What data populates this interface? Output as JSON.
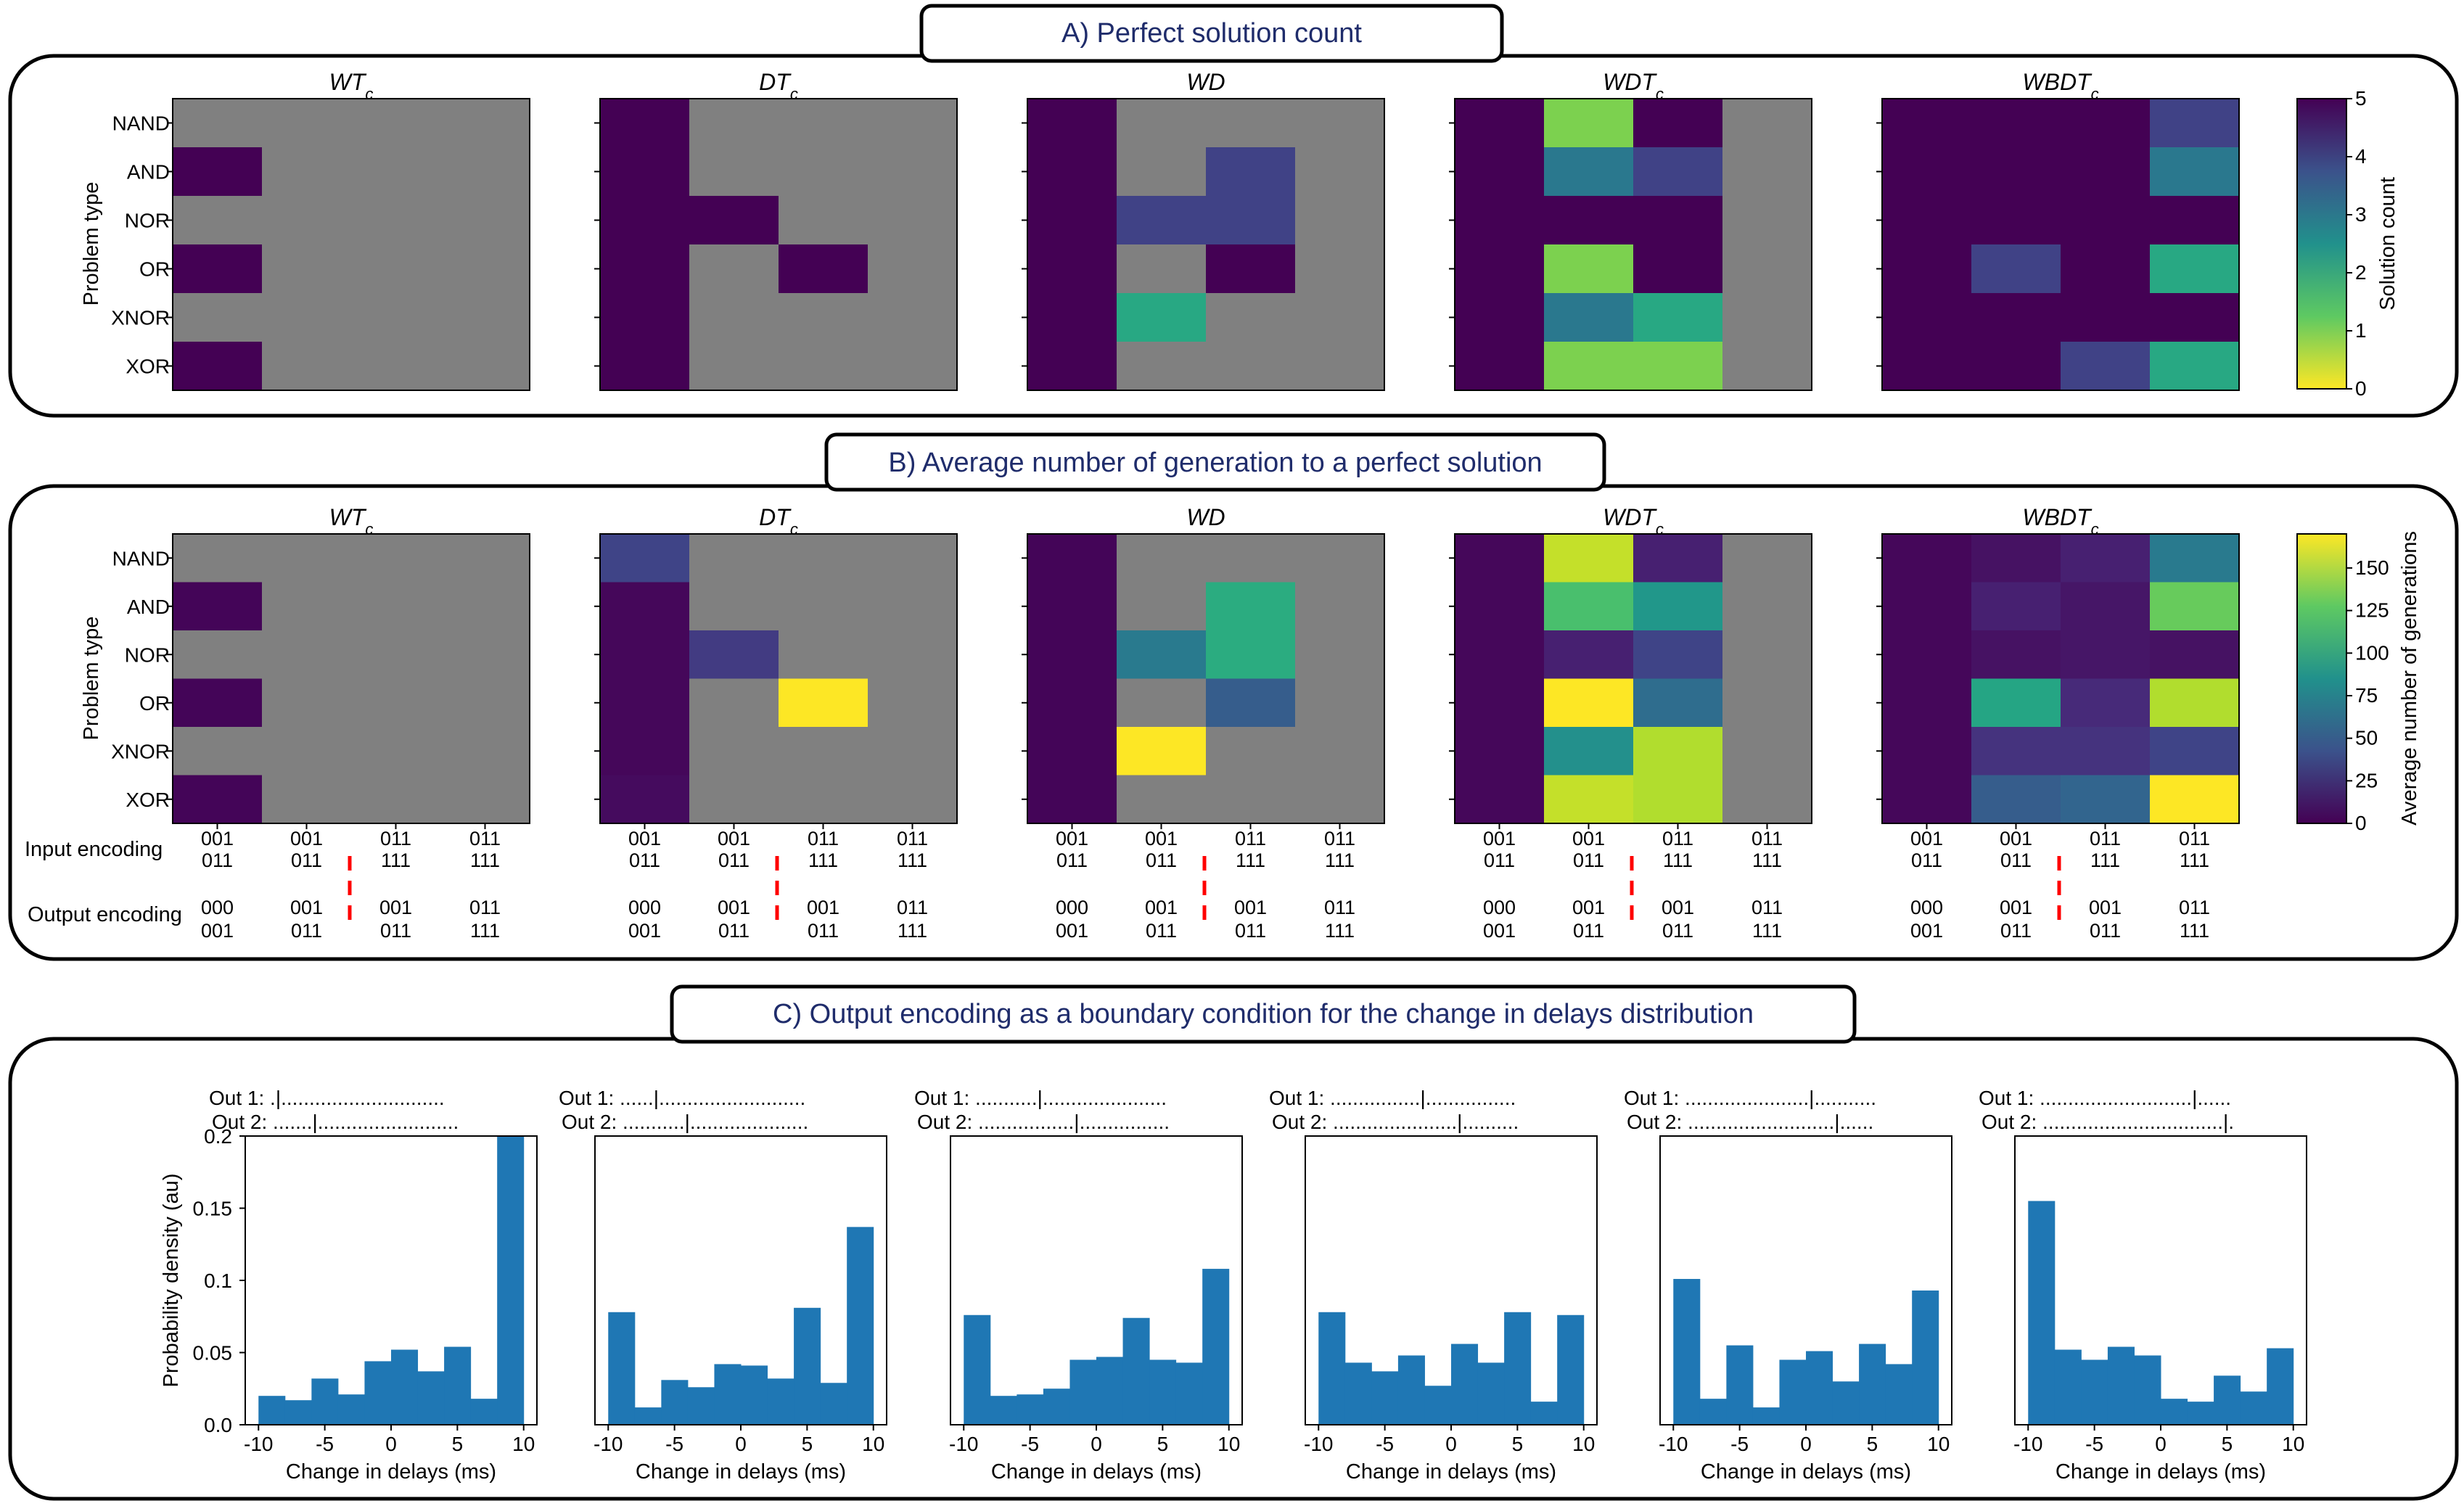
{
  "sections": {
    "a": {
      "title": "A) Perfect solution count"
    },
    "b": {
      "title": "B) Average number of generation to a perfect solution"
    },
    "c": {
      "title": "C) Output encoding as a boundary condition for the change in delays distribution"
    }
  },
  "colors": {
    "nan": "#808080",
    "bar": "#1f77b4",
    "frame": "#000000",
    "header_text": "#1f2c6b",
    "dash": "#ff0000"
  },
  "chart_data": [
    {
      "id": "A",
      "type": "heatmap",
      "ylabel": "Problem type",
      "rows": [
        "NAND",
        "AND",
        "NOR",
        "OR",
        "XNOR",
        "XOR"
      ],
      "cols": 4,
      "colormap": "viridis_r",
      "vmin": 0,
      "vmax": 5,
      "colorbar_label": "Solution count",
      "colorbar_ticks": [
        "0",
        "1",
        "2",
        "3",
        "4",
        "5"
      ],
      "panels": [
        {
          "title": "WT",
          "subscript": "c",
          "values": [
            [
              null,
              null,
              null,
              null
            ],
            [
              5,
              null,
              null,
              null
            ],
            [
              null,
              null,
              null,
              null
            ],
            [
              5,
              null,
              null,
              null
            ],
            [
              null,
              null,
              null,
              null
            ],
            [
              5,
              null,
              null,
              null
            ]
          ]
        },
        {
          "title": "DT",
          "subscript": "c",
          "values": [
            [
              5,
              null,
              null,
              null
            ],
            [
              5,
              null,
              null,
              null
            ],
            [
              5,
              5,
              null,
              null
            ],
            [
              5,
              null,
              5,
              null
            ],
            [
              5,
              null,
              null,
              null
            ],
            [
              5,
              null,
              null,
              null
            ]
          ]
        },
        {
          "title": "WD",
          "subscript": "",
          "values": [
            [
              5,
              null,
              null,
              null
            ],
            [
              5,
              null,
              4,
              null
            ],
            [
              5,
              4,
              4,
              null
            ],
            [
              5,
              null,
              5,
              null
            ],
            [
              5,
              2,
              null,
              null
            ],
            [
              5,
              null,
              null,
              null
            ]
          ]
        },
        {
          "title": "WDT",
          "subscript": "c",
          "values": [
            [
              5,
              1,
              5,
              null
            ],
            [
              5,
              3,
              4,
              null
            ],
            [
              5,
              5,
              5,
              null
            ],
            [
              5,
              1,
              5,
              null
            ],
            [
              5,
              3,
              2,
              null
            ],
            [
              5,
              1,
              1,
              null
            ]
          ]
        },
        {
          "title": "WBDT",
          "subscript": "c",
          "values": [
            [
              5,
              5,
              5,
              4
            ],
            [
              5,
              5,
              5,
              3
            ],
            [
              5,
              5,
              5,
              5
            ],
            [
              5,
              4,
              5,
              2
            ],
            [
              5,
              5,
              5,
              5
            ],
            [
              5,
              5,
              4,
              2
            ]
          ]
        }
      ]
    },
    {
      "id": "B",
      "type": "heatmap",
      "ylabel": "Problem type",
      "rows": [
        "NAND",
        "AND",
        "NOR",
        "OR",
        "XNOR",
        "XOR"
      ],
      "cols": 4,
      "colormap": "viridis",
      "vmin": 0,
      "vmax": 170,
      "colorbar_label": "Average number of generations",
      "colorbar_ticks": [
        "0",
        "25",
        "50",
        "75",
        "100",
        "125",
        "150"
      ],
      "panels": [
        {
          "title": "WT",
          "subscript": "c",
          "values": [
            [
              null,
              null,
              null,
              null
            ],
            [
              2,
              null,
              null,
              null
            ],
            [
              null,
              null,
              null,
              null
            ],
            [
              2,
              null,
              null,
              null
            ],
            [
              null,
              null,
              null,
              null
            ],
            [
              2,
              null,
              null,
              null
            ]
          ]
        },
        {
          "title": "DT",
          "subscript": "c",
          "values": [
            [
              35,
              null,
              null,
              null
            ],
            [
              3,
              null,
              null,
              null
            ],
            [
              3,
              30,
              null,
              null
            ],
            [
              3,
              null,
              170,
              null
            ],
            [
              3,
              null,
              null,
              null
            ],
            [
              5,
              null,
              null,
              null
            ]
          ]
        },
        {
          "title": "WD",
          "subscript": "",
          "values": [
            [
              2,
              null,
              null,
              null
            ],
            [
              2,
              null,
              105,
              null
            ],
            [
              2,
              70,
              105,
              null
            ],
            [
              2,
              null,
              50,
              null
            ],
            [
              2,
              170,
              null,
              null
            ],
            [
              2,
              null,
              null,
              null
            ]
          ]
        },
        {
          "title": "WDT",
          "subscript": "c",
          "values": [
            [
              3,
              155,
              15,
              null
            ],
            [
              3,
              120,
              90,
              null
            ],
            [
              3,
              15,
              35,
              null
            ],
            [
              3,
              170,
              60,
              null
            ],
            [
              3,
              85,
              150,
              null
            ],
            [
              3,
              155,
              150,
              null
            ]
          ]
        },
        {
          "title": "WBDT",
          "subscript": "c",
          "values": [
            [
              3,
              8,
              15,
              70
            ],
            [
              3,
              15,
              10,
              130
            ],
            [
              3,
              8,
              10,
              8
            ],
            [
              3,
              100,
              20,
              150
            ],
            [
              3,
              25,
              25,
              35
            ],
            [
              3,
              50,
              55,
              170
            ]
          ]
        }
      ],
      "encoding": {
        "input_label": "Input encoding",
        "output_label": "Output encoding",
        "input_line1": [
          "001",
          "001",
          "011",
          "011"
        ],
        "input_line2": [
          "011",
          "011",
          "111",
          "111"
        ],
        "output_line1": [
          "000",
          "001",
          "001",
          "011"
        ],
        "output_line2": [
          "001",
          "011",
          "011",
          "111"
        ]
      }
    },
    {
      "id": "C",
      "type": "bar",
      "xlabel": "Change in delays (ms)",
      "ylabel": "Probability density (au)",
      "ylim": [
        0,
        0.2
      ],
      "xlim": [
        -11,
        11
      ],
      "bin_edges": [
        -10,
        -8,
        -6,
        -4,
        -2,
        0,
        2,
        4,
        6,
        8,
        10
      ],
      "xticks": [
        "-10",
        "-5",
        "0",
        "5",
        "10"
      ],
      "yticks": [
        "0.0",
        "0.05",
        "0.1",
        "0.15",
        "0.2"
      ],
      "panels": [
        {
          "out1": "Out 1: .|.............................",
          "out2": "Out 2: .......|.........................",
          "values": [
            0.02,
            0.017,
            0.032,
            0.021,
            0.044,
            0.052,
            0.037,
            0.054,
            0.018,
            0.2
          ]
        },
        {
          "out1": "Out 1: ......|..........................",
          "out2": "Out 2: ...........|.....................",
          "values": [
            0.078,
            0.012,
            0.031,
            0.026,
            0.042,
            0.041,
            0.032,
            0.081,
            0.029,
            0.137
          ]
        },
        {
          "out1": "Out 1: ...........|......................",
          "out2": "Out 2: .................|................",
          "values": [
            0.076,
            0.02,
            0.021,
            0.025,
            0.045,
            0.047,
            0.074,
            0.045,
            0.043,
            0.108
          ]
        },
        {
          "out1": "Out 1: ................|................",
          "out2": "Out 2: ......................|..........",
          "values": [
            0.078,
            0.043,
            0.037,
            0.048,
            0.027,
            0.056,
            0.043,
            0.078,
            0.016,
            0.076
          ]
        },
        {
          "out1": "Out 1: ......................|...........",
          "out2": "Out 2: ..........................|......",
          "values": [
            0.101,
            0.018,
            0.055,
            0.012,
            0.045,
            0.051,
            0.03,
            0.056,
            0.042,
            0.093
          ]
        },
        {
          "out1": "Out 1: ...........................|......",
          "out2": "Out 2: ................................|.",
          "values": [
            0.155,
            0.052,
            0.045,
            0.054,
            0.048,
            0.018,
            0.016,
            0.034,
            0.023,
            0.053
          ]
        }
      ]
    }
  ]
}
